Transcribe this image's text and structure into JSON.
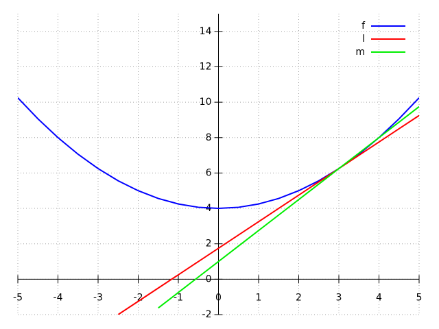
{
  "chart_data": {
    "type": "line",
    "x": [
      -5,
      -4.5,
      -4,
      -3.5,
      -3,
      -2.5,
      -2,
      -1.5,
      -1,
      -0.5,
      0,
      0.5,
      1,
      1.5,
      2,
      2.5,
      3,
      3.5,
      4,
      4.5,
      5
    ],
    "series": [
      {
        "name": "f",
        "color": "#0000ff",
        "values": [
          10.25,
          9.0625,
          8,
          7.0625,
          6.25,
          5.5625,
          5,
          4.5625,
          4.25,
          4.0625,
          4,
          4.0625,
          4.25,
          4.5625,
          5,
          5.5625,
          6.25,
          7.0625,
          8,
          9.0625,
          10.25
        ]
      },
      {
        "name": "l",
        "color": "#ff0000",
        "values": [
          null,
          null,
          null,
          null,
          null,
          -2,
          -1.25,
          -0.5,
          0.25,
          1,
          1.75,
          2.5,
          3.25,
          4,
          4.75,
          5.5,
          6.25,
          7,
          7.75,
          8.5,
          9.25
        ]
      },
      {
        "name": "m",
        "color": "#00ee00",
        "values": [
          null,
          null,
          null,
          null,
          null,
          null,
          null,
          -1.625,
          -0.75,
          0.125,
          1,
          1.875,
          2.75,
          3.625,
          4.5,
          5.375,
          6.25,
          7.125,
          8,
          8.875,
          9.75
        ]
      }
    ],
    "xlim": [
      -5,
      5
    ],
    "ylim": [
      -2,
      15
    ],
    "xticks": [
      -5,
      -4,
      -3,
      -2,
      -1,
      0,
      1,
      2,
      3,
      4,
      5
    ],
    "yticks": [
      -2,
      0,
      2,
      4,
      6,
      8,
      10,
      12,
      14
    ],
    "grid": true,
    "legend": "top-right"
  }
}
